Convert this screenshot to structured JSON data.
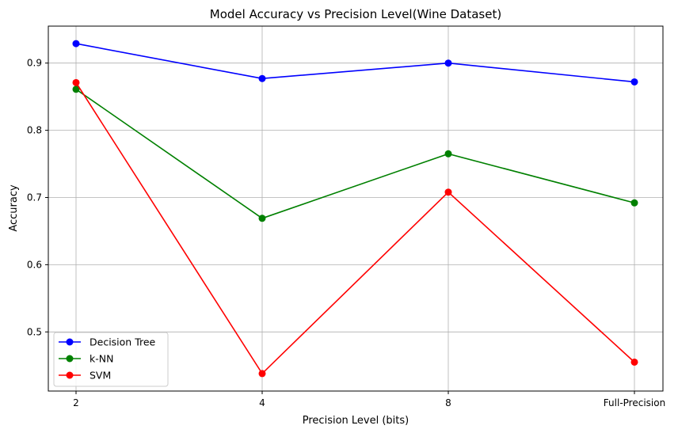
{
  "chart_data": {
    "type": "line",
    "title": "Model Accuracy vs Precision Level(Wine Dataset)",
    "xlabel": "Precision Level (bits)",
    "ylabel": "Accuracy",
    "categories": [
      "2",
      "4",
      "8",
      "Full-Precision"
    ],
    "yticks": [
      "0.5",
      "0.6",
      "0.7",
      "0.8",
      "0.9"
    ],
    "ylim": [
      0.412,
      0.955
    ],
    "grid": true,
    "legend_position": "lower-left",
    "series": [
      {
        "name": "Decision Tree",
        "color": "#0000ff",
        "values": [
          0.929,
          0.877,
          0.9,
          0.872
        ]
      },
      {
        "name": "k-NN",
        "color": "#008000",
        "values": [
          0.861,
          0.669,
          0.765,
          0.692
        ]
      },
      {
        "name": "SVM",
        "color": "#ff0000",
        "values": [
          0.871,
          0.438,
          0.708,
          0.455
        ]
      }
    ]
  }
}
